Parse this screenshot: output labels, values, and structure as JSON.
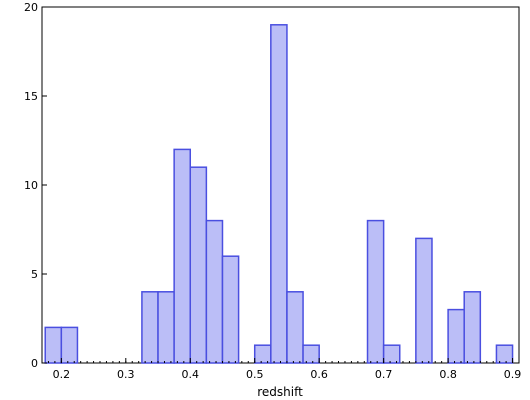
{
  "chart_data": {
    "type": "bar",
    "title": "",
    "xlabel": "redshift",
    "ylabel": "",
    "xlim": [
      0.17,
      0.91
    ],
    "ylim": [
      0,
      20
    ],
    "x_ticks": [
      0.2,
      0.3,
      0.4,
      0.5,
      0.6,
      0.7,
      0.8,
      0.9
    ],
    "x_tick_labels": [
      "0.2",
      "0.3",
      "0.4",
      "0.5",
      "0.6",
      "0.7",
      "0.8",
      "0.9"
    ],
    "y_ticks": [
      0,
      5,
      10,
      15,
      20
    ],
    "y_tick_labels": [
      "0",
      "5",
      "10",
      "15",
      "20"
    ],
    "grid": false,
    "bin_width": 0.025,
    "bins": [
      {
        "left": 0.175,
        "count": 2
      },
      {
        "left": 0.2,
        "count": 2
      },
      {
        "left": 0.325,
        "count": 4
      },
      {
        "left": 0.35,
        "count": 4
      },
      {
        "left": 0.375,
        "count": 12
      },
      {
        "left": 0.4,
        "count": 11
      },
      {
        "left": 0.425,
        "count": 8
      },
      {
        "left": 0.45,
        "count": 6
      },
      {
        "left": 0.5,
        "count": 1
      },
      {
        "left": 0.525,
        "count": 19
      },
      {
        "left": 0.55,
        "count": 4
      },
      {
        "left": 0.575,
        "count": 1
      },
      {
        "left": 0.675,
        "count": 8
      },
      {
        "left": 0.7,
        "count": 1
      },
      {
        "left": 0.75,
        "count": 7
      },
      {
        "left": 0.8,
        "count": 3
      },
      {
        "left": 0.825,
        "count": 4
      },
      {
        "left": 0.875,
        "count": 1
      }
    ],
    "colors": {
      "bar_fill": "#bbbef7",
      "bar_stroke": "#4a4fe0",
      "axis": "#000000"
    }
  }
}
